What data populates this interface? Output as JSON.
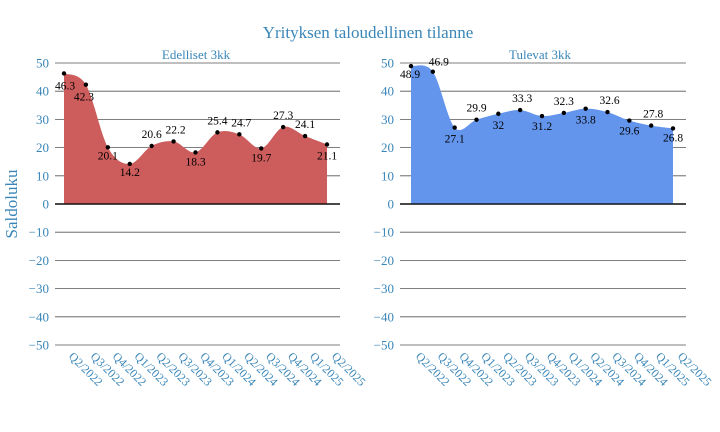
{
  "title": "Yrityksen taloudellinen tilanne",
  "ylabel": "Saldoluku",
  "chart_data": [
    {
      "type": "area",
      "title": "Edelliset 3kk",
      "categories": [
        "Q2/2022",
        "Q3/2022",
        "Q4/2022",
        "Q1/2023",
        "Q2/2023",
        "Q3/2023",
        "Q4/2023",
        "Q1/2024",
        "Q2/2024",
        "Q3/2024",
        "Q4/2024",
        "Q1/2025",
        "Q2/2025"
      ],
      "values": [
        46.3,
        42.3,
        20.1,
        14.2,
        20.6,
        22.2,
        18.3,
        25.4,
        24.7,
        19.7,
        27.3,
        24.1,
        21.1
      ],
      "color": "#cd5c5c",
      "ylim": [
        -50,
        50
      ],
      "yticks": [
        50,
        40,
        30,
        20,
        10,
        0,
        -10,
        -20,
        -30,
        -40,
        -50
      ],
      "grid": true
    },
    {
      "type": "area",
      "title": "Tulevat 3kk",
      "categories": [
        "Q2/2022",
        "Q3/2022",
        "Q4/2022",
        "Q1/2023",
        "Q2/2023",
        "Q3/2023",
        "Q4/2023",
        "Q1/2024",
        "Q2/2024",
        "Q3/2024",
        "Q4/2024",
        "Q1/2025",
        "Q2/2025"
      ],
      "values": [
        48.9,
        46.9,
        27.1,
        29.9,
        32,
        33.3,
        31.2,
        32.3,
        33.8,
        32.6,
        29.6,
        27.8,
        26.8
      ],
      "color": "#6495ed",
      "ylim": [
        -50,
        50
      ],
      "yticks": [
        50,
        40,
        30,
        20,
        10,
        0,
        -10,
        -20,
        -30,
        -40,
        -50
      ],
      "grid": true
    }
  ]
}
